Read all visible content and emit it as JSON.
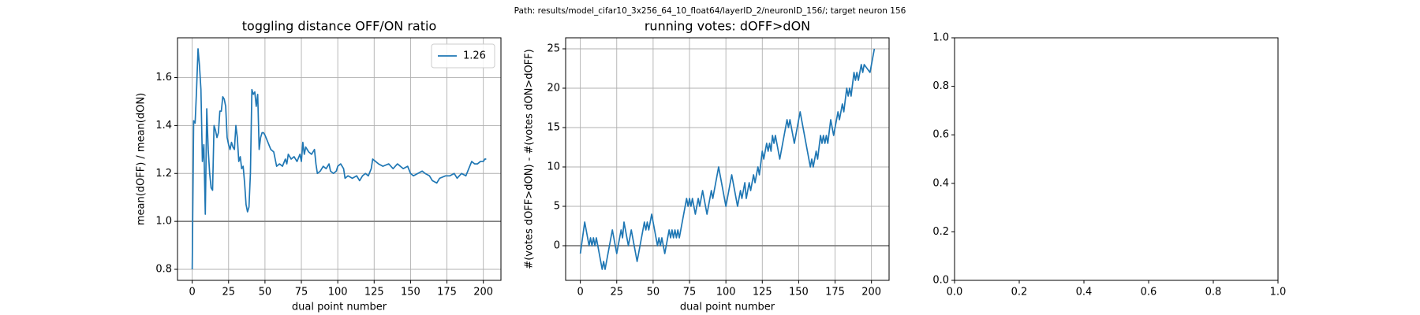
{
  "suptitle": "Path: results/model_cifar10_3x256_64_10_float64/layerID_2/neuronID_156/; target neuron 156",
  "chart_data": [
    {
      "type": "line",
      "title": "toggling distance OFF/ON ratio",
      "xlabel": "dual point number",
      "ylabel": "mean(dOFF) / mean(dON)",
      "xlim": [
        -10.1,
        212.1
      ],
      "ylim": [
        0.754,
        1.766
      ],
      "xticks": [
        0,
        25,
        50,
        75,
        100,
        125,
        150,
        175,
        200
      ],
      "yticks": [
        0.8,
        {
          "value": 1,
          "label": "1.0"
        },
        1.2,
        1.4,
        1.6
      ],
      "grid": true,
      "hline": 1,
      "hline_color": "#808080",
      "legend": "upper right",
      "x": [
        0,
        1,
        2,
        3,
        4,
        5,
        6,
        7,
        8,
        9,
        10,
        11,
        12,
        13,
        14,
        15,
        16,
        17,
        18,
        19,
        20,
        21,
        22,
        23,
        24,
        25,
        26,
        27,
        28,
        29,
        30,
        31,
        32,
        33,
        34,
        35,
        36,
        37,
        38,
        39,
        40,
        41,
        42,
        43,
        44,
        45,
        46,
        47,
        48,
        49,
        50,
        52,
        54,
        56,
        58,
        60,
        62,
        64,
        65,
        66,
        68,
        70,
        72,
        74,
        75,
        76,
        77,
        78,
        80,
        82,
        84,
        85,
        86,
        88,
        90,
        92,
        94,
        95,
        97,
        99,
        100,
        102,
        104,
        105,
        107,
        110,
        113,
        115,
        117,
        119,
        121,
        123,
        124,
        126,
        128,
        131,
        135,
        138,
        141,
        145,
        148,
        150,
        152,
        155,
        158,
        160,
        163,
        165,
        168,
        170,
        174,
        177,
        180,
        182,
        185,
        188,
        190,
        192,
        194,
        196,
        198,
        200,
        201,
        202
      ],
      "series": [
        {
          "name": "1.26",
          "color": "#1f77b4",
          "values": [
            0.8,
            1.42,
            1.41,
            1.55,
            1.72,
            1.65,
            1.55,
            1.25,
            1.32,
            1.03,
            1.47,
            1.3,
            1.2,
            1.14,
            1.13,
            1.4,
            1.38,
            1.35,
            1.37,
            1.46,
            1.46,
            1.52,
            1.51,
            1.48,
            1.35,
            1.32,
            1.3,
            1.33,
            1.31,
            1.3,
            1.4,
            1.35,
            1.25,
            1.27,
            1.22,
            1.23,
            1.16,
            1.07,
            1.04,
            1.06,
            1.2,
            1.55,
            1.53,
            1.54,
            1.48,
            1.53,
            1.3,
            1.35,
            1.37,
            1.37,
            1.36,
            1.33,
            1.3,
            1.29,
            1.23,
            1.24,
            1.23,
            1.26,
            1.24,
            1.28,
            1.26,
            1.27,
            1.25,
            1.28,
            1.25,
            1.33,
            1.28,
            1.31,
            1.29,
            1.28,
            1.3,
            1.24,
            1.2,
            1.21,
            1.23,
            1.22,
            1.24,
            1.21,
            1.2,
            1.21,
            1.23,
            1.24,
            1.22,
            1.18,
            1.19,
            1.18,
            1.19,
            1.17,
            1.19,
            1.2,
            1.19,
            1.22,
            1.26,
            1.25,
            1.24,
            1.23,
            1.24,
            1.22,
            1.24,
            1.22,
            1.23,
            1.2,
            1.19,
            1.2,
            1.21,
            1.2,
            1.19,
            1.17,
            1.16,
            1.18,
            1.19,
            1.19,
            1.2,
            1.18,
            1.2,
            1.19,
            1.22,
            1.25,
            1.24,
            1.24,
            1.25,
            1.25,
            1.26,
            1.26
          ]
        }
      ]
    },
    {
      "type": "line",
      "title": "running votes: dOFF>dON",
      "xlabel": "dual point number",
      "ylabel": "#(votes dOFF>dON) - #(votes dON>dOFF)",
      "xlim": [
        -10.1,
        212.1
      ],
      "ylim": [
        -4.4,
        26.4
      ],
      "xticks": [
        0,
        25,
        50,
        75,
        100,
        125,
        150,
        175,
        200
      ],
      "yticks": [
        0,
        5,
        10,
        15,
        20,
        25
      ],
      "grid": true,
      "hline": 0,
      "hline_color": "#808080",
      "x": [
        0,
        3,
        6,
        7,
        8,
        9,
        10,
        11,
        13,
        15,
        16,
        17,
        22,
        25,
        28,
        29,
        30,
        33,
        35,
        37,
        39,
        44,
        45,
        46,
        47,
        49,
        52,
        53,
        54,
        55,
        56,
        58,
        61,
        62,
        63,
        64,
        65,
        66,
        67,
        68,
        69,
        73,
        74,
        75,
        76,
        77,
        79,
        81,
        82,
        84,
        85,
        87,
        90,
        91,
        95,
        100,
        104,
        108,
        109,
        110,
        111,
        113,
        114,
        116,
        117,
        119,
        120,
        122,
        123,
        125,
        126,
        128,
        129,
        130,
        131,
        132,
        133,
        134,
        137,
        142,
        143,
        144,
        147,
        151,
        157,
        158,
        159,
        160,
        162,
        163,
        165,
        166,
        167,
        168,
        169,
        170,
        172,
        174,
        177,
        178,
        180,
        181,
        183,
        184,
        185,
        186,
        188,
        189,
        190,
        191,
        193,
        194,
        195,
        199,
        202
      ],
      "color": "#1f77b4",
      "values": [
        -1,
        3,
        0,
        1,
        0,
        1,
        0,
        1,
        -1,
        -3,
        -2,
        -3,
        2,
        -1,
        2,
        1,
        3,
        0,
        2,
        0,
        -2,
        3,
        2,
        3,
        2,
        4,
        1,
        0,
        1,
        0,
        1,
        -1,
        2,
        1,
        2,
        1,
        2,
        1,
        2,
        1,
        2,
        6,
        5,
        6,
        5,
        6,
        4,
        6,
        5,
        7,
        6,
        4,
        7,
        6,
        10,
        5,
        9,
        5,
        6,
        7,
        6,
        8,
        6,
        8,
        7,
        9,
        8,
        10,
        9,
        12,
        11,
        13,
        12,
        13,
        12,
        14,
        13,
        14,
        11,
        16,
        15,
        16,
        13,
        17,
        11,
        10,
        11,
        10,
        12,
        11,
        14,
        13,
        14,
        13,
        14,
        13,
        16,
        14,
        17,
        16,
        18,
        17,
        20,
        19,
        20,
        19,
        22,
        21,
        22,
        21,
        23,
        22,
        23,
        22,
        25
      ]
    },
    {
      "type": "line",
      "xlim": [
        0,
        1
      ],
      "ylim": [
        0,
        1
      ],
      "grid": false,
      "xticks": [
        {
          "value": 0,
          "label": "0.0"
        },
        0.2,
        0.4,
        0.6,
        0.8,
        {
          "value": 1,
          "label": "1.0"
        }
      ],
      "yticks": [
        {
          "value": 0,
          "label": "0.0"
        },
        0.2,
        0.4,
        0.6,
        0.8,
        {
          "value": 1,
          "label": "1.0"
        }
      ]
    }
  ]
}
